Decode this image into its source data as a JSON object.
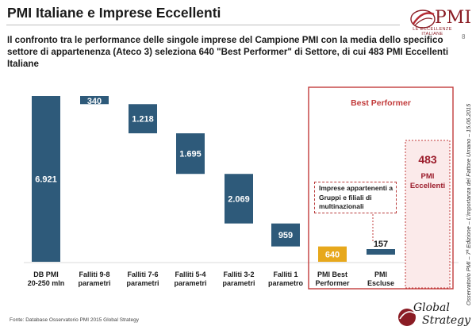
{
  "header": {
    "title": "PMI Italiane e Imprese Eccellenti",
    "page_number": "8",
    "logo_text": "PMI",
    "logo_subtitle": "LE ECCELLENZE ITALIANE"
  },
  "intro": "Il confronto tra le performance delle singole imprese del Campione PMI con la media dello specifico settore di appartenenza (Ateco 3) seleziona 640 \"Best Performer\" di Settore, di cui 483 PMI Eccellenti Italiane",
  "side_note": "Osservatorio PMI – 7ª Edizione – L'importanza del Fattore Umano – 15.06.2015",
  "footer": {
    "source": "Fonte: Database Osservatorio PMI 2015 Global Strategy",
    "brand_line1": "Global",
    "brand_line2": "Strategy"
  },
  "annotations": {
    "best_performer_title": "Best Performer",
    "excellent_value": "483",
    "excellent_label": "PMI Eccellenti",
    "callout": "Imprese appartenenti a Gruppi e filiali di multinazionali"
  },
  "colors": {
    "blue_bar": "#2e5a7a",
    "gold_bar": "#e7a81c",
    "accent_red": "#c23b3b",
    "dark_red": "#9b1c2b"
  },
  "chart_data": {
    "type": "bar",
    "subtype": "waterfall",
    "categories": [
      "DB PMI 20-250 mln",
      "Falliti 9-8 parametri",
      "Falliti 7-6 parametri",
      "Falliti 5-4 parametri",
      "Falliti 3-2 parametri",
      "Falliti 1 parametro",
      "PMI Best Performer",
      "PMI Escluse",
      "PMI Eccellenti"
    ],
    "category_labels": [
      [
        "DB PMI",
        "20-250 mln"
      ],
      [
        "Falliti 9-8",
        "parametri"
      ],
      [
        "Falliti 7-6",
        "parametri"
      ],
      [
        "Falliti 5-4",
        "parametri"
      ],
      [
        "Falliti 3-2",
        "parametri"
      ],
      [
        "Falliti 1",
        "parametro"
      ],
      [
        "PMI Best",
        "Performer"
      ],
      [
        "PMI",
        "Escluse"
      ],
      [
        "PMI",
        "Eccellenti"
      ]
    ],
    "values": [
      6921,
      340,
      1218,
      1695,
      2069,
      959,
      640,
      157,
      483
    ],
    "value_labels": [
      "6.921",
      "340",
      "1.218",
      "1.695",
      "2.069",
      "959",
      "640",
      "157",
      ""
    ],
    "bar_kind": [
      "total",
      "decrease",
      "decrease",
      "decrease",
      "decrease",
      "decrease",
      "total",
      "decrease",
      "total"
    ],
    "ylim": [
      0,
      6921
    ],
    "grid": false,
    "legend": "none"
  }
}
